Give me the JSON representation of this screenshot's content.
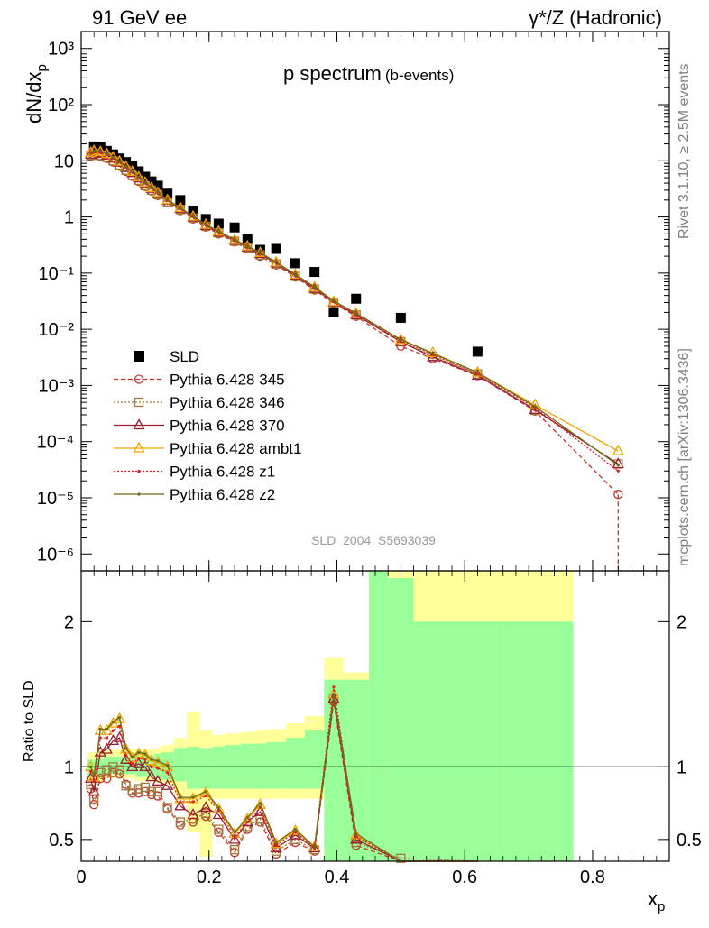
{
  "header": {
    "left": "91 GeV ee",
    "right": "γ*/Z (Hadronic)"
  },
  "side_labels": {
    "rivet": "Rivet 3.1.10, ≥ 2.5M events",
    "mcplots": "mcplots.cern.ch [arXiv:1306.3436]"
  },
  "analysis_id": "SLD_2004_S5693039",
  "chart_data": [
    {
      "type": "scatter",
      "panel": "main",
      "title": "p spectrum",
      "subtitle": "(b-events)",
      "ylabel_main": "dN/dx",
      "ylabel_sub": "p",
      "yscale": "log",
      "xlim": [
        0,
        0.92
      ],
      "ylim": [
        5e-07,
        2000
      ],
      "ytick_labels": [
        "10³",
        "10²",
        "10",
        "1",
        "10⁻¹",
        "10⁻²",
        "10⁻³",
        "10⁻⁴",
        "10⁻⁵",
        "10⁻⁶"
      ],
      "ytick_values": [
        1000,
        100,
        10,
        1,
        0.1,
        0.01,
        0.001,
        0.0001,
        1e-05,
        1e-06
      ],
      "legend_position": "lower-left",
      "series": [
        {
          "name": "SLD",
          "color": "#000000",
          "style": "marker-square",
          "x": [
            0.02,
            0.03,
            0.04,
            0.05,
            0.06,
            0.07,
            0.08,
            0.09,
            0.1,
            0.11,
            0.12,
            0.135,
            0.155,
            0.175,
            0.195,
            0.215,
            0.24,
            0.26,
            0.28,
            0.305,
            0.335,
            0.365,
            0.395,
            0.43,
            0.5,
            0.62
          ],
          "y": [
            18,
            17.5,
            15,
            13,
            11,
            9.5,
            8,
            6.5,
            5.2,
            4.3,
            3.6,
            2.6,
            2.0,
            1.3,
            0.92,
            0.76,
            0.65,
            0.4,
            0.26,
            0.27,
            0.15,
            0.105,
            0.02,
            0.035,
            0.016,
            0.004
          ]
        },
        {
          "name": "Pythia 6.428 345",
          "color": "#c0392b",
          "style": "dashed-circle",
          "x": [
            0.015,
            0.02,
            0.03,
            0.04,
            0.05,
            0.06,
            0.07,
            0.08,
            0.09,
            0.1,
            0.11,
            0.12,
            0.135,
            0.155,
            0.175,
            0.195,
            0.215,
            0.24,
            0.26,
            0.28,
            0.305,
            0.335,
            0.365,
            0.395,
            0.43,
            0.5,
            0.55,
            0.62,
            0.71,
            0.84
          ],
          "y": [
            12,
            12.5,
            12,
            11,
            9.5,
            8,
            6.5,
            5.3,
            4.3,
            3.5,
            2.9,
            2.4,
            1.8,
            1.3,
            0.92,
            0.66,
            0.5,
            0.36,
            0.27,
            0.2,
            0.14,
            0.085,
            0.05,
            0.029,
            0.017,
            0.005,
            0.003,
            0.0015,
            0.00035,
            1.15e-05
          ]
        },
        {
          "name": "Pythia 6.428 346",
          "color": "#a07a3c",
          "style": "dotted-square",
          "x": [
            0.015,
            0.02,
            0.03,
            0.04,
            0.05,
            0.06,
            0.07,
            0.08,
            0.09,
            0.1,
            0.11,
            0.12,
            0.135,
            0.155,
            0.175,
            0.195,
            0.215,
            0.24,
            0.26,
            0.28,
            0.305,
            0.335,
            0.365,
            0.395,
            0.43,
            0.5,
            0.55,
            0.62,
            0.71,
            0.84
          ],
          "y": [
            12.5,
            13,
            12.5,
            11.5,
            10,
            8.4,
            6.8,
            5.5,
            4.5,
            3.6,
            3.0,
            2.5,
            1.85,
            1.35,
            0.95,
            0.68,
            0.52,
            0.37,
            0.28,
            0.21,
            0.145,
            0.088,
            0.052,
            0.03,
            0.018,
            0.006,
            0.0033,
            0.0016,
            0.00036,
            4e-05
          ]
        },
        {
          "name": "Pythia 6.428 370",
          "color": "#9b1b30",
          "style": "solid-triangle",
          "x": [
            0.015,
            0.02,
            0.03,
            0.04,
            0.05,
            0.06,
            0.07,
            0.08,
            0.09,
            0.1,
            0.11,
            0.12,
            0.135,
            0.155,
            0.175,
            0.195,
            0.215,
            0.24,
            0.26,
            0.28,
            0.305,
            0.335,
            0.365,
            0.395,
            0.43,
            0.5,
            0.55,
            0.62,
            0.71,
            0.84
          ],
          "y": [
            13,
            14,
            13.5,
            12.5,
            11,
            9.3,
            7.5,
            6.1,
            4.9,
            3.9,
            3.2,
            2.6,
            1.95,
            1.4,
            0.98,
            0.7,
            0.53,
            0.38,
            0.29,
            0.22,
            0.15,
            0.09,
            0.053,
            0.03,
            0.018,
            0.006,
            0.0032,
            0.0015,
            0.00037,
            4e-05
          ]
        },
        {
          "name": "Pythia 6.428 ambt1",
          "color": "#f0a500",
          "style": "solid-triangle",
          "x": [
            0.015,
            0.02,
            0.03,
            0.04,
            0.05,
            0.06,
            0.07,
            0.08,
            0.09,
            0.1,
            0.11,
            0.12,
            0.135,
            0.155,
            0.175,
            0.195,
            0.215,
            0.24,
            0.26,
            0.28,
            0.305,
            0.335,
            0.365,
            0.395,
            0.43,
            0.5,
            0.55,
            0.62,
            0.71,
            0.84
          ],
          "y": [
            14,
            15,
            14.5,
            13.3,
            11.5,
            9.7,
            7.9,
            6.4,
            5.1,
            4.1,
            3.3,
            2.7,
            2.0,
            1.45,
            1.02,
            0.73,
            0.55,
            0.39,
            0.3,
            0.23,
            0.155,
            0.094,
            0.056,
            0.031,
            0.019,
            0.0065,
            0.0038,
            0.0017,
            0.00045,
            6.8e-05
          ]
        },
        {
          "name": "Pythia 6.428 z1",
          "color": "#e02020",
          "style": "dotted-dot",
          "x": [
            0.015,
            0.02,
            0.03,
            0.04,
            0.05,
            0.06,
            0.07,
            0.08,
            0.09,
            0.1,
            0.11,
            0.12,
            0.135,
            0.155,
            0.175,
            0.195,
            0.215,
            0.24,
            0.26,
            0.28,
            0.305,
            0.335,
            0.365,
            0.395,
            0.43,
            0.5,
            0.55,
            0.62,
            0.71,
            0.84
          ],
          "y": [
            13.5,
            14.5,
            14,
            13,
            11.3,
            9.5,
            7.7,
            6.2,
            5.0,
            4.0,
            3.25,
            2.65,
            1.97,
            1.42,
            1.0,
            0.71,
            0.54,
            0.385,
            0.295,
            0.225,
            0.152,
            0.092,
            0.055,
            0.031,
            0.0185,
            0.0063,
            0.0035,
            0.0016,
            0.0004,
            3e-05
          ]
        },
        {
          "name": "Pythia 6.428 z2",
          "color": "#6b6b1a",
          "style": "solid-dot",
          "x": [
            0.015,
            0.02,
            0.03,
            0.04,
            0.05,
            0.06,
            0.07,
            0.08,
            0.09,
            0.1,
            0.11,
            0.12,
            0.135,
            0.155,
            0.175,
            0.195,
            0.215,
            0.24,
            0.26,
            0.28,
            0.305,
            0.335,
            0.365,
            0.395,
            0.43,
            0.5,
            0.55,
            0.62,
            0.71,
            0.84
          ],
          "y": [
            14,
            15,
            14.6,
            13.5,
            11.6,
            9.8,
            8.0,
            6.5,
            5.15,
            4.15,
            3.35,
            2.75,
            2.02,
            1.46,
            1.03,
            0.735,
            0.555,
            0.395,
            0.302,
            0.232,
            0.157,
            0.095,
            0.057,
            0.032,
            0.0192,
            0.0066,
            0.0037,
            0.0017,
            0.00042,
            3.8e-05
          ]
        }
      ]
    },
    {
      "type": "line",
      "panel": "ratio",
      "ylabel": "Ratio to SLD",
      "xlabel_main": "x",
      "xlabel_sub": "p",
      "xlim": [
        0,
        0.92
      ],
      "ylim": [
        0.35,
        2.35
      ],
      "xtick_labels": [
        "0",
        "0.2",
        "0.4",
        "0.6",
        "0.8"
      ],
      "xtick_values": [
        0,
        0.2,
        0.4,
        0.6,
        0.8
      ],
      "ytick_labels": [
        "0.5",
        "1",
        "2"
      ],
      "ytick_values": [
        0.5,
        1,
        2
      ],
      "uncertainty_bands": {
        "x_edges": [
          0.01,
          0.025,
          0.035,
          0.045,
          0.055,
          0.065,
          0.075,
          0.085,
          0.095,
          0.105,
          0.115,
          0.125,
          0.145,
          0.165,
          0.185,
          0.205,
          0.225,
          0.25,
          0.27,
          0.29,
          0.32,
          0.35,
          0.38,
          0.41,
          0.45,
          0.48,
          0.52,
          0.58,
          0.66,
          0.77
        ],
        "stat_low": [
          0.93,
          0.94,
          0.95,
          0.95,
          0.95,
          0.95,
          0.95,
          0.93,
          0.93,
          0.93,
          0.92,
          0.91,
          0.9,
          0.85,
          0.85,
          0.85,
          0.85,
          0.85,
          0.85,
          0.85,
          0.85,
          0.85,
          0.35,
          0.35,
          0.35,
          0.35,
          0.35,
          0.35,
          0.35
        ],
        "stat_high": [
          1.05,
          1.06,
          1.07,
          1.07,
          1.07,
          1.07,
          1.07,
          1.08,
          1.08,
          1.08,
          1.09,
          1.1,
          1.13,
          1.14,
          1.13,
          1.14,
          1.15,
          1.16,
          1.16,
          1.17,
          1.2,
          1.25,
          1.6,
          1.6,
          2.5,
          2.3,
          2.0,
          2.0,
          2.0
        ],
        "total_low": [
          0.9,
          0.9,
          0.92,
          0.92,
          0.92,
          0.92,
          0.92,
          0.9,
          0.9,
          0.9,
          0.89,
          0.88,
          0.8,
          0.55,
          0.38,
          0.78,
          0.78,
          0.78,
          0.78,
          0.78,
          0.78,
          0.78,
          0.35,
          0.35,
          0.35,
          0.35,
          0.65,
          0.35,
          0.5
        ],
        "total_high": [
          1.1,
          1.12,
          1.12,
          1.12,
          1.12,
          1.12,
          1.12,
          1.12,
          1.12,
          1.12,
          1.13,
          1.15,
          1.2,
          1.38,
          1.25,
          1.22,
          1.23,
          1.24,
          1.25,
          1.26,
          1.3,
          1.35,
          1.75,
          1.65,
          2.5,
          2.35,
          2.35,
          2.35,
          2.35
        ],
        "stat_color": "#99ff99",
        "total_color": "#ffff99"
      },
      "series": [
        {
          "name": "Pythia 6.428 345",
          "color": "#c0392b",
          "x": [
            0.015,
            0.02,
            0.03,
            0.04,
            0.05,
            0.06,
            0.07,
            0.08,
            0.09,
            0.1,
            0.11,
            0.12,
            0.135,
            0.155,
            0.175,
            0.195,
            0.215,
            0.24,
            0.26,
            0.28,
            0.305,
            0.335,
            0.365,
            0.395,
            0.43,
            0.5,
            0.62
          ],
          "y": [
            0.85,
            0.74,
            0.92,
            0.92,
            0.96,
            0.95,
            0.88,
            0.82,
            0.82,
            0.83,
            0.81,
            0.8,
            0.71,
            0.6,
            0.62,
            0.66,
            0.55,
            0.41,
            0.57,
            0.62,
            0.4,
            0.48,
            0.42,
            1.45,
            0.46,
            0.33,
            0.35
          ]
        },
        {
          "name": "Pythia 6.428 346",
          "color": "#a07a3c",
          "x": [
            0.015,
            0.02,
            0.03,
            0.04,
            0.05,
            0.06,
            0.07,
            0.08,
            0.09,
            0.1,
            0.11,
            0.12,
            0.135,
            0.155,
            0.175,
            0.195,
            0.215,
            0.24,
            0.26,
            0.28,
            0.305,
            0.335,
            0.365,
            0.395,
            0.43,
            0.5,
            0.62
          ],
          "y": [
            0.88,
            0.78,
            0.96,
            0.98,
            1.0,
            0.98,
            0.87,
            0.84,
            0.85,
            0.86,
            0.83,
            0.83,
            0.72,
            0.62,
            0.64,
            0.68,
            0.57,
            0.43,
            0.59,
            0.64,
            0.42,
            0.5,
            0.43,
            1.47,
            0.48,
            0.37,
            0.35
          ]
        },
        {
          "name": "Pythia 6.428 370",
          "color": "#9b1b30",
          "x": [
            0.015,
            0.02,
            0.03,
            0.04,
            0.05,
            0.06,
            0.07,
            0.08,
            0.09,
            0.1,
            0.11,
            0.12,
            0.135,
            0.155,
            0.175,
            0.195,
            0.215,
            0.24,
            0.26,
            0.28,
            0.305,
            0.335,
            0.365,
            0.395,
            0.43,
            0.5,
            0.62
          ],
          "y": [
            0.92,
            0.83,
            1.1,
            1.12,
            1.18,
            1.2,
            1.05,
            1.0,
            1.02,
            1.0,
            0.93,
            0.9,
            0.87,
            0.73,
            0.67,
            0.72,
            0.67,
            0.5,
            0.62,
            0.69,
            0.44,
            0.53,
            0.44,
            1.47,
            0.5,
            0.35,
            0.35
          ]
        },
        {
          "name": "Pythia 6.428 ambt1",
          "color": "#f0a500",
          "x": [
            0.015,
            0.02,
            0.03,
            0.04,
            0.05,
            0.06,
            0.07,
            0.08,
            0.09,
            0.1,
            0.11,
            0.12,
            0.135,
            0.155,
            0.175,
            0.195,
            0.215,
            0.24,
            0.26,
            0.28,
            0.305,
            0.335,
            0.365,
            0.395,
            0.43,
            0.5,
            0.62
          ],
          "y": [
            1.0,
            0.93,
            1.25,
            1.25,
            1.3,
            1.33,
            1.12,
            1.06,
            1.09,
            1.08,
            1.04,
            1.03,
            1.0,
            0.78,
            0.78,
            0.82,
            0.71,
            0.54,
            0.64,
            0.74,
            0.47,
            0.56,
            0.45,
            1.5,
            0.53,
            0.35,
            0.35
          ]
        },
        {
          "name": "Pythia 6.428 z1",
          "color": "#e02020",
          "x": [
            0.015,
            0.02,
            0.03,
            0.04,
            0.05,
            0.06,
            0.07,
            0.08,
            0.09,
            0.1,
            0.11,
            0.12,
            0.135,
            0.155,
            0.175,
            0.195,
            0.215,
            0.24,
            0.26,
            0.28,
            0.305,
            0.335,
            0.365,
            0.395,
            0.43,
            0.5,
            0.62
          ],
          "y": [
            0.97,
            0.9,
            1.2,
            1.2,
            1.25,
            1.28,
            1.08,
            1.02,
            1.06,
            1.05,
            1.0,
            0.99,
            0.96,
            0.76,
            0.76,
            0.8,
            0.7,
            0.52,
            0.62,
            0.72,
            0.46,
            0.55,
            0.44,
            1.55,
            0.52,
            0.35,
            0.35
          ]
        },
        {
          "name": "Pythia 6.428 z2",
          "color": "#6b6b1a",
          "x": [
            0.015,
            0.02,
            0.03,
            0.04,
            0.05,
            0.06,
            0.07,
            0.08,
            0.09,
            0.1,
            0.11,
            0.12,
            0.135,
            0.155,
            0.175,
            0.195,
            0.215,
            0.24,
            0.26,
            0.28,
            0.305,
            0.335,
            0.365,
            0.395,
            0.43,
            0.5,
            0.62
          ],
          "y": [
            1.0,
            0.94,
            1.26,
            1.26,
            1.31,
            1.34,
            1.13,
            1.07,
            1.1,
            1.09,
            1.05,
            1.04,
            1.01,
            0.79,
            0.79,
            0.83,
            0.72,
            0.55,
            0.65,
            0.75,
            0.48,
            0.57,
            0.45,
            1.5,
            0.54,
            0.35,
            0.35
          ]
        }
      ]
    }
  ]
}
